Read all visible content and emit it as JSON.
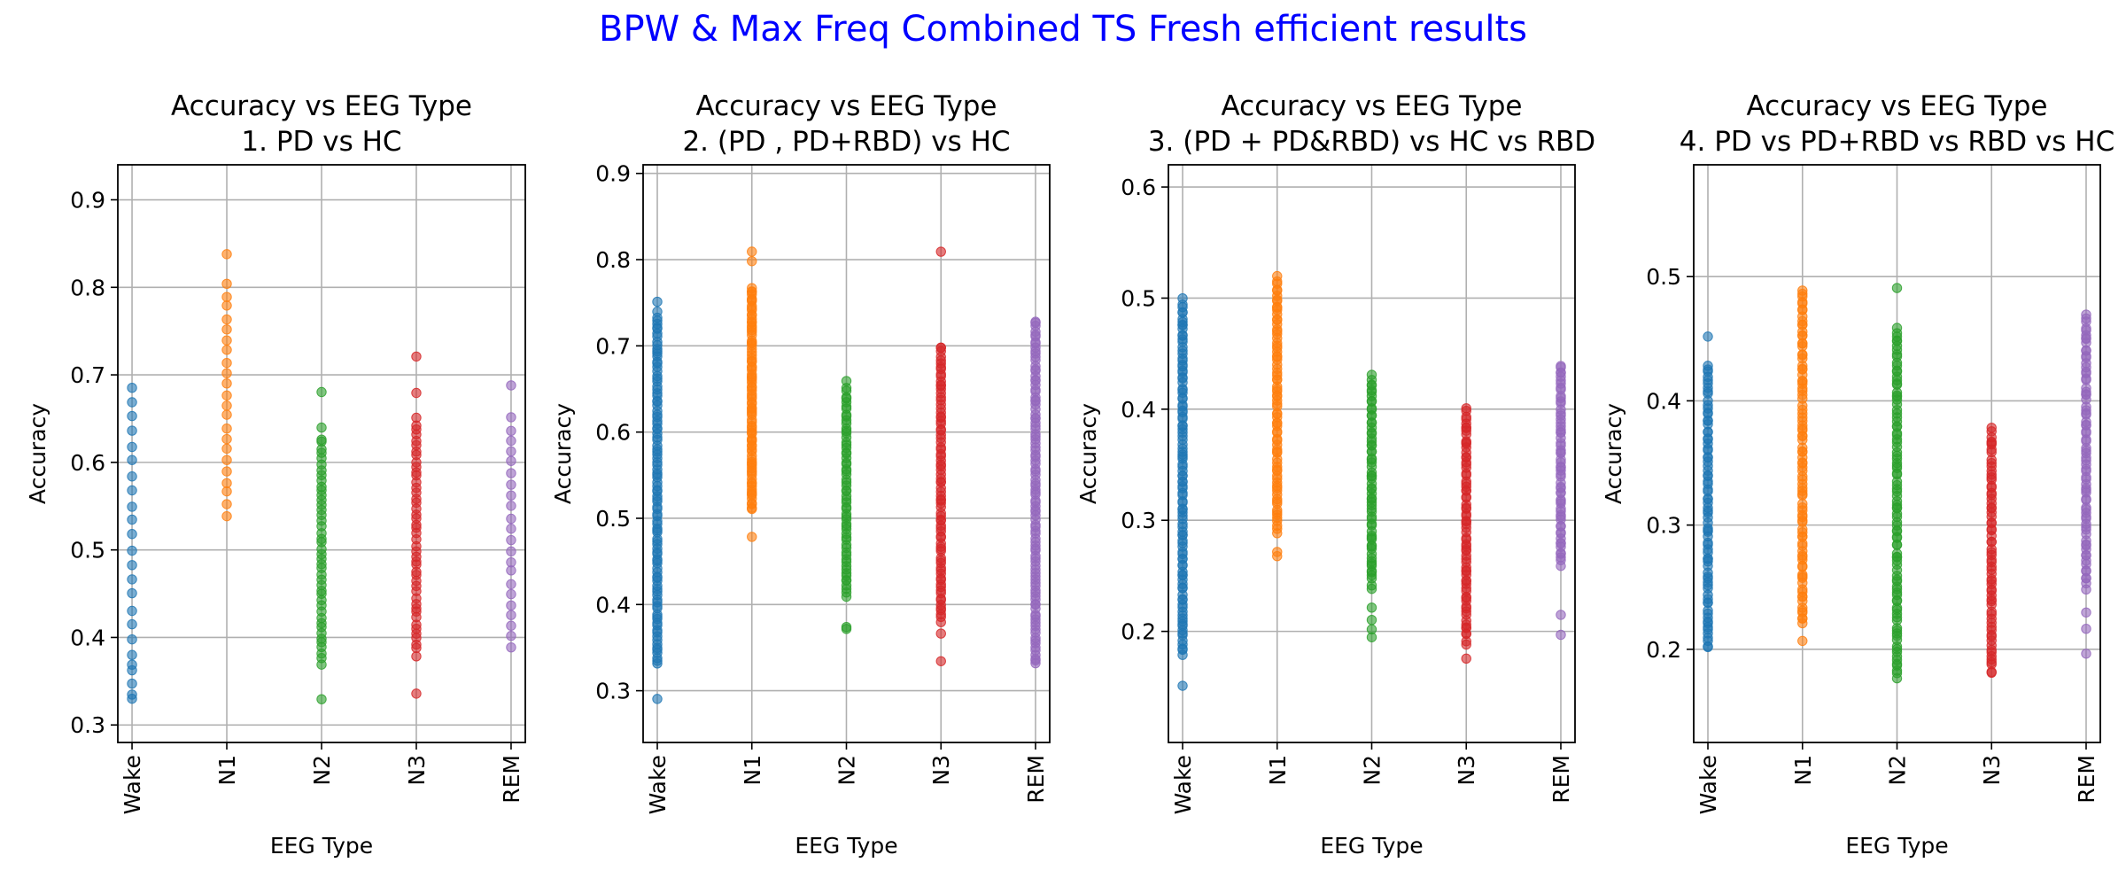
{
  "figure": {
    "suptitle": "BPW & Max Freq Combined TS Fresh efficient results",
    "suptitle_color": "#0000ff"
  },
  "colors": {
    "Wake": "#1f77b4",
    "N1": "#ff7f0e",
    "N2": "#2ca02c",
    "N3": "#d62728",
    "REM": "#9467bd"
  },
  "chart_data": [
    {
      "type": "scatter",
      "title": "Accuracy vs EEG Type\n1. PD vs HC",
      "xlabel": "EEG Type",
      "ylabel": "Accuracy",
      "categories": [
        "Wake",
        "N1",
        "N2",
        "N3",
        "REM"
      ],
      "ylim": [
        0.28,
        0.94
      ],
      "yticks": [
        0.3,
        0.4,
        0.5,
        0.6,
        0.7,
        0.8,
        0.9
      ],
      "grid": true,
      "series": [
        {
          "name": "Wake",
          "range": [
            0.33,
            0.7
          ],
          "step": 0.017,
          "outliers": [
            0.333,
            0.367
          ]
        },
        {
          "name": "N1",
          "range": [
            0.54,
            0.81
          ],
          "step": 0.0125,
          "outliers": [
            0.838
          ]
        },
        {
          "name": "N2",
          "range": [
            0.37,
            0.63
          ],
          "step": 0.006,
          "outliers": [
            0.33,
            0.68,
            0.64
          ]
        },
        {
          "name": "N3",
          "range": [
            0.38,
            0.65
          ],
          "step": 0.006,
          "outliers": [
            0.336,
            0.72,
            0.68
          ]
        },
        {
          "name": "REM",
          "range": [
            0.4,
            0.65
          ],
          "step": 0.0125,
          "outliers": [
            0.388,
            0.688
          ]
        }
      ]
    },
    {
      "type": "scatter",
      "title": "Accuracy vs EEG Type\n2. (PD , PD+RBD) vs HC",
      "xlabel": "EEG Type",
      "ylabel": "Accuracy",
      "categories": [
        "Wake",
        "N1",
        "N2",
        "N3",
        "REM"
      ],
      "ylim": [
        0.24,
        0.91
      ],
      "yticks": [
        0.3,
        0.4,
        0.5,
        0.6,
        0.7,
        0.8,
        0.9
      ],
      "grid": true,
      "series": [
        {
          "name": "Wake",
          "range": [
            0.33,
            0.74
          ],
          "step": 0.004,
          "outliers": [
            0.29,
            0.75
          ]
        },
        {
          "name": "N1",
          "range": [
            0.51,
            0.77
          ],
          "step": 0.003,
          "outliers": [
            0.48,
            0.81,
            0.8
          ]
        },
        {
          "name": "N2",
          "range": [
            0.41,
            0.65
          ],
          "step": 0.004,
          "outliers": [
            0.37,
            0.375,
            0.66
          ]
        },
        {
          "name": "N3",
          "range": [
            0.38,
            0.7
          ],
          "step": 0.004,
          "outliers": [
            0.335,
            0.81,
            0.365
          ]
        },
        {
          "name": "REM",
          "range": [
            0.33,
            0.73
          ],
          "step": 0.004,
          "outliers": []
        }
      ]
    },
    {
      "type": "scatter",
      "title": "Accuracy vs EEG Type\n3. (PD + PD&RBD) vs HC vs RBD",
      "xlabel": "EEG Type",
      "ylabel": "Accuracy",
      "categories": [
        "Wake",
        "N1",
        "N2",
        "N3",
        "REM"
      ],
      "ylim": [
        0.1,
        0.62
      ],
      "yticks": [
        0.2,
        0.3,
        0.4,
        0.5,
        0.6
      ],
      "grid": true,
      "series": [
        {
          "name": "Wake",
          "range": [
            0.18,
            0.5
          ],
          "step": 0.003,
          "outliers": [
            0.15
          ]
        },
        {
          "name": "N1",
          "range": [
            0.29,
            0.52
          ],
          "step": 0.003,
          "outliers": [
            0.27,
            0.268
          ]
        },
        {
          "name": "N2",
          "range": [
            0.24,
            0.43
          ],
          "step": 0.003,
          "outliers": [
            0.195,
            0.2,
            0.21,
            0.22
          ]
        },
        {
          "name": "N3",
          "range": [
            0.19,
            0.4
          ],
          "step": 0.003,
          "outliers": [
            0.175
          ]
        },
        {
          "name": "REM",
          "range": [
            0.26,
            0.44
          ],
          "step": 0.003,
          "outliers": [
            0.195,
            0.215
          ]
        }
      ]
    },
    {
      "type": "scatter",
      "title": "Accuracy vs EEG Type\n4. PD vs PD+RBD vs RBD vs HC",
      "xlabel": "EEG Type",
      "ylabel": "Accuracy",
      "categories": [
        "Wake",
        "N1",
        "N2",
        "N3",
        "REM"
      ],
      "ylim": [
        0.125,
        0.59
      ],
      "yticks": [
        0.2,
        0.3,
        0.4,
        0.5
      ],
      "grid": true,
      "series": [
        {
          "name": "Wake",
          "range": [
            0.2,
            0.43
          ],
          "step": 0.003,
          "outliers": [
            0.45
          ]
        },
        {
          "name": "N1",
          "range": [
            0.22,
            0.49
          ],
          "step": 0.003,
          "outliers": [
            0.205
          ]
        },
        {
          "name": "N2",
          "range": [
            0.18,
            0.46
          ],
          "step": 0.003,
          "outliers": [
            0.175,
            0.49
          ]
        },
        {
          "name": "N3",
          "range": [
            0.18,
            0.38
          ],
          "step": 0.003,
          "outliers": []
        },
        {
          "name": "REM",
          "range": [
            0.25,
            0.47
          ],
          "step": 0.003,
          "outliers": [
            0.195,
            0.215,
            0.23
          ]
        }
      ]
    }
  ]
}
